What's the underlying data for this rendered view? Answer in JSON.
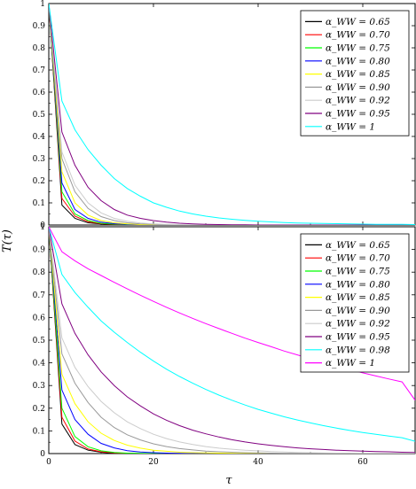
{
  "figure": {
    "ylabel": "T(τ)",
    "xlabel": "τ"
  },
  "chart_data": [
    {
      "type": "line",
      "xlim": [
        0,
        70
      ],
      "ylim": [
        0,
        1
      ],
      "yticks": [
        0,
        0.1,
        0.2,
        0.3,
        0.4,
        0.5,
        0.6,
        0.7,
        0.8,
        0.9,
        1
      ],
      "ytick_labels": [
        "0",
        "0.1",
        "0.2",
        "0.3",
        "0.4",
        "0.5",
        "0.6",
        "0.7",
        "0.8",
        "0.9",
        "1"
      ],
      "xticks": [
        0,
        20,
        40,
        60
      ],
      "xtick_labels": [],
      "legend_position": "top-right",
      "x": [
        0,
        2.5,
        5,
        7.5,
        10,
        12.5,
        15,
        17.5,
        20,
        22.5,
        25,
        27.5,
        30,
        32.5,
        35,
        37.5,
        40,
        42.5,
        45,
        47.5,
        50,
        52.5,
        55,
        57.5,
        60,
        62.5,
        65,
        67.5,
        70
      ],
      "series": [
        {
          "name": "α_WW = 0.65",
          "color": "#000000",
          "values": [
            1,
            0.09,
            0.03,
            0.01,
            0.005,
            0.002,
            0.001,
            0,
            0,
            0,
            0,
            0,
            0,
            0,
            0,
            0,
            0,
            0,
            0,
            0,
            0,
            0,
            0,
            0,
            0,
            0,
            0,
            0,
            0
          ]
        },
        {
          "name": "α_WW = 0.70",
          "color": "#ff0000",
          "values": [
            1,
            0.12,
            0.04,
            0.015,
            0.006,
            0.003,
            0.001,
            0,
            0,
            0,
            0,
            0,
            0,
            0,
            0,
            0,
            0,
            0,
            0,
            0,
            0,
            0,
            0,
            0,
            0,
            0,
            0,
            0,
            0
          ]
        },
        {
          "name": "α_WW = 0.75",
          "color": "#00ff00",
          "values": [
            1,
            0.15,
            0.05,
            0.02,
            0.008,
            0.004,
            0.002,
            0.001,
            0,
            0,
            0,
            0,
            0,
            0,
            0,
            0,
            0,
            0,
            0,
            0,
            0,
            0,
            0,
            0,
            0,
            0,
            0,
            0,
            0
          ]
        },
        {
          "name": "α_WW = 0.80",
          "color": "#0000ff",
          "values": [
            1,
            0.19,
            0.07,
            0.03,
            0.013,
            0.006,
            0.003,
            0.001,
            0,
            0,
            0,
            0,
            0,
            0,
            0,
            0,
            0,
            0,
            0,
            0,
            0,
            0,
            0,
            0,
            0,
            0,
            0,
            0,
            0
          ]
        },
        {
          "name": "α_WW = 0.85",
          "color": "#ffff00",
          "values": [
            1,
            0.24,
            0.1,
            0.045,
            0.02,
            0.01,
            0.005,
            0.002,
            0.001,
            0,
            0,
            0,
            0,
            0,
            0,
            0,
            0,
            0,
            0,
            0,
            0,
            0,
            0,
            0,
            0,
            0,
            0,
            0,
            0
          ]
        },
        {
          "name": "α_WW = 0.90",
          "color": "#999999",
          "values": [
            1,
            0.3,
            0.15,
            0.075,
            0.038,
            0.02,
            0.01,
            0.005,
            0.003,
            0.001,
            0,
            0,
            0,
            0,
            0,
            0,
            0,
            0,
            0,
            0,
            0,
            0,
            0,
            0,
            0,
            0,
            0,
            0,
            0
          ]
        },
        {
          "name": "α_WW = 0.92",
          "color": "#cccccc",
          "values": [
            1,
            0.33,
            0.18,
            0.1,
            0.055,
            0.03,
            0.017,
            0.009,
            0.005,
            0.003,
            0.002,
            0.001,
            0,
            0,
            0,
            0,
            0,
            0,
            0,
            0,
            0,
            0,
            0,
            0,
            0,
            0,
            0,
            0,
            0
          ]
        },
        {
          "name": "α_WW = 0.95",
          "color": "#800080",
          "values": [
            1,
            0.42,
            0.27,
            0.17,
            0.11,
            0.07,
            0.045,
            0.03,
            0.02,
            0.013,
            0.008,
            0.005,
            0.003,
            0.002,
            0.001,
            0.001,
            0,
            0,
            0,
            0,
            0,
            0,
            0,
            0,
            0,
            0,
            0,
            0,
            0
          ]
        },
        {
          "name": "α_WW = 1",
          "color": "#00ffff",
          "values": [
            1,
            0.56,
            0.43,
            0.34,
            0.27,
            0.21,
            0.165,
            0.13,
            0.1,
            0.08,
            0.063,
            0.05,
            0.04,
            0.032,
            0.026,
            0.021,
            0.017,
            0.014,
            0.011,
            0.009,
            0.008,
            0.007,
            0.006,
            0.005,
            0.004,
            0.003,
            0.003,
            0.003,
            0.002
          ]
        }
      ]
    },
    {
      "type": "line",
      "xlim": [
        0,
        70
      ],
      "ylim": [
        0,
        1
      ],
      "yticks": [
        0,
        0.1,
        0.2,
        0.3,
        0.4,
        0.5,
        0.6,
        0.7,
        0.8,
        0.9,
        1
      ],
      "ytick_labels": [
        "0",
        "0.1",
        "0.2",
        "0.3",
        "0.4",
        "0.5",
        "0.6",
        "0.7",
        "0.8",
        "0.9",
        "1"
      ],
      "xticks": [
        0,
        20,
        40,
        60
      ],
      "xtick_labels": [
        "0",
        "20",
        "40",
        "60"
      ],
      "legend_position": "top-right",
      "x": [
        0,
        2.5,
        5,
        7.5,
        10,
        12.5,
        15,
        17.5,
        20,
        22.5,
        25,
        27.5,
        30,
        32.5,
        35,
        37.5,
        40,
        42.5,
        45,
        47.5,
        50,
        52.5,
        55,
        57.5,
        60,
        62.5,
        65,
        67.5,
        70
      ],
      "series": [
        {
          "name": "α_WW = 0.65",
          "color": "#000000",
          "values": [
            1,
            0.13,
            0.04,
            0.015,
            0.006,
            0.002,
            0.001,
            0,
            0,
            0,
            0,
            0,
            0,
            0,
            0,
            0,
            0,
            0,
            0,
            0,
            0,
            0,
            0,
            0,
            0,
            0,
            0,
            0,
            0
          ]
        },
        {
          "name": "α_WW = 0.70",
          "color": "#ff0000",
          "values": [
            1,
            0.16,
            0.055,
            0.02,
            0.008,
            0.003,
            0.001,
            0,
            0,
            0,
            0,
            0,
            0,
            0,
            0,
            0,
            0,
            0,
            0,
            0,
            0,
            0,
            0,
            0,
            0,
            0,
            0,
            0,
            0
          ]
        },
        {
          "name": "α_WW = 0.75",
          "color": "#00ff00",
          "values": [
            1,
            0.2,
            0.075,
            0.03,
            0.012,
            0.005,
            0.002,
            0.001,
            0,
            0,
            0,
            0,
            0,
            0,
            0,
            0,
            0,
            0,
            0,
            0,
            0,
            0,
            0,
            0,
            0,
            0,
            0,
            0,
            0
          ]
        },
        {
          "name": "α_WW = 0.80",
          "color": "#0000ff",
          "values": [
            1,
            0.28,
            0.15,
            0.085,
            0.045,
            0.025,
            0.013,
            0.007,
            0.004,
            0.002,
            0.001,
            0,
            0,
            0,
            0,
            0,
            0,
            0,
            0,
            0,
            0,
            0,
            0,
            0,
            0,
            0,
            0,
            0,
            0
          ]
        },
        {
          "name": "α_WW = 0.85",
          "color": "#ffff00",
          "values": [
            1,
            0.35,
            0.22,
            0.14,
            0.09,
            0.058,
            0.037,
            0.024,
            0.015,
            0.01,
            0.006,
            0.004,
            0.003,
            0.002,
            0.001,
            0,
            0,
            0,
            0,
            0,
            0,
            0,
            0,
            0,
            0,
            0,
            0,
            0,
            0
          ]
        },
        {
          "name": "α_WW = 0.90",
          "color": "#999999",
          "values": [
            1,
            0.44,
            0.31,
            0.225,
            0.16,
            0.115,
            0.083,
            0.06,
            0.043,
            0.031,
            0.022,
            0.016,
            0.011,
            0.008,
            0.006,
            0.004,
            0.003,
            0.002,
            0.001,
            0.001,
            0,
            0,
            0,
            0,
            0,
            0,
            0,
            0,
            0
          ]
        },
        {
          "name": "α_WW = 0.92",
          "color": "#cccccc",
          "values": [
            1,
            0.51,
            0.38,
            0.295,
            0.23,
            0.18,
            0.14,
            0.11,
            0.085,
            0.066,
            0.051,
            0.04,
            0.031,
            0.024,
            0.019,
            0.015,
            0.012,
            0.009,
            0.007,
            0.005,
            0.004,
            0.003,
            0.002,
            0.002,
            0.001,
            0.001,
            0.001,
            0.001,
            0
          ]
        },
        {
          "name": "α_WW = 0.95",
          "color": "#800080",
          "values": [
            1,
            0.66,
            0.53,
            0.435,
            0.36,
            0.3,
            0.25,
            0.21,
            0.175,
            0.147,
            0.123,
            0.103,
            0.087,
            0.073,
            0.061,
            0.051,
            0.043,
            0.036,
            0.03,
            0.025,
            0.021,
            0.018,
            0.015,
            0.013,
            0.011,
            0.009,
            0.008,
            0.006,
            0.005
          ]
        },
        {
          "name": "α_WW = 0.98",
          "color": "#00ffff",
          "values": [
            1,
            0.79,
            0.71,
            0.645,
            0.585,
            0.535,
            0.49,
            0.447,
            0.408,
            0.372,
            0.34,
            0.31,
            0.283,
            0.258,
            0.235,
            0.214,
            0.195,
            0.178,
            0.162,
            0.148,
            0.135,
            0.123,
            0.112,
            0.102,
            0.093,
            0.085,
            0.077,
            0.07,
            0.054
          ]
        },
        {
          "name": "α_WW = 1",
          "color": "#ff00ff",
          "values": [
            1,
            0.89,
            0.85,
            0.815,
            0.785,
            0.755,
            0.726,
            0.698,
            0.671,
            0.645,
            0.62,
            0.596,
            0.573,
            0.551,
            0.53,
            0.509,
            0.49,
            0.471,
            0.452,
            0.435,
            0.418,
            0.401,
            0.386,
            0.371,
            0.356,
            0.342,
            0.329,
            0.316,
            0.235
          ]
        }
      ]
    }
  ]
}
